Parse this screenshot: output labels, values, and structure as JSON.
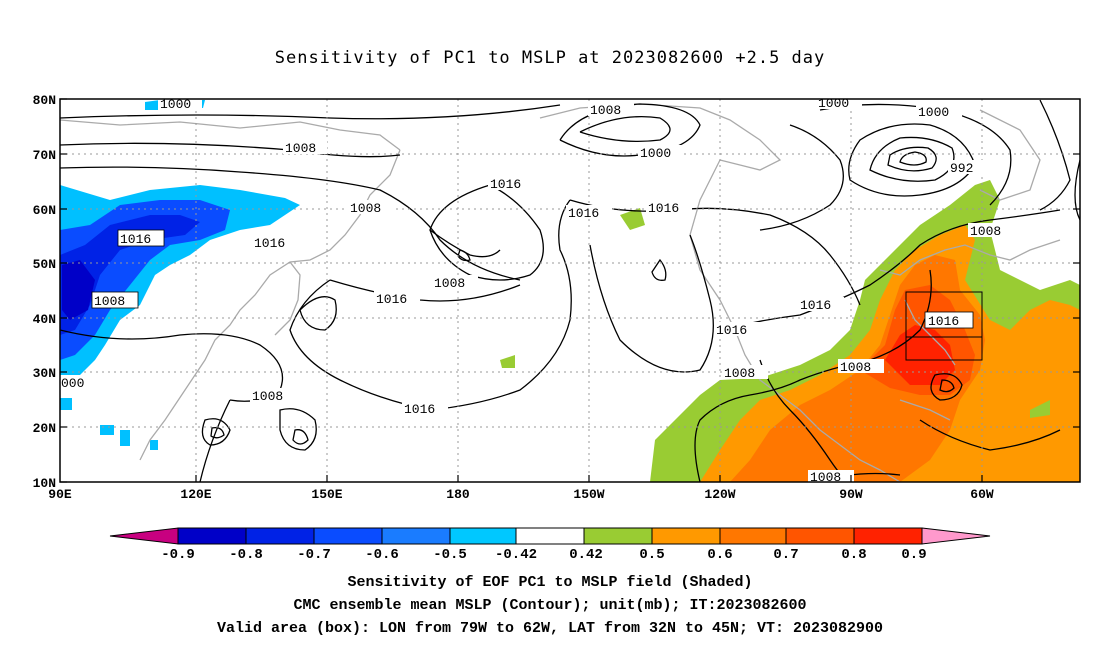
{
  "title": "Sensitivity of PC1 to MSLP at 2023082600 +2.5 day",
  "map": {
    "lat_labels": [
      "80N",
      "70N",
      "60N",
      "50N",
      "40N",
      "30N",
      "20N",
      "10N"
    ],
    "lon_labels": [
      "90E",
      "120E",
      "150E",
      "180",
      "150W",
      "120W",
      "90W",
      "60W"
    ],
    "valid_box": {
      "lon_w": "79W",
      "lon_e": "62W",
      "lat_s": "32N",
      "lat_n": "45N"
    },
    "contour_labels": [
      "1000",
      "1008",
      "1008",
      "1016",
      "1008",
      "1000",
      "1016",
      "1016",
      "1016",
      "1008",
      "1016",
      "1008",
      "1000",
      "1008",
      "1016",
      "1016",
      "1016",
      "1008",
      "1016",
      "1000",
      "992",
      "1008",
      "1016",
      "1016",
      "1008",
      "1008",
      "1008",
      "000"
    ],
    "colors": {
      "neg_strong": "#0000c8",
      "neg_mid": "#0a4cff",
      "neg_light": "#00c0ff",
      "pos_light": "#99cc33",
      "pos_mid": "#ff9900",
      "pos_strong": "#ff6600",
      "pos_max": "#ff2200",
      "land": "#aaaaaa"
    }
  },
  "colorbar": {
    "labels": [
      "-0.9",
      "-0.8",
      "-0.7",
      "-0.6",
      "-0.5",
      "-0.42",
      "0.42",
      "0.5",
      "0.6",
      "0.7",
      "0.8",
      "0.9"
    ],
    "colors": [
      "#c80080",
      "#0000c8",
      "#0022e6",
      "#0a4cff",
      "#1a7cff",
      "#1aa8ff",
      "#00c8ff",
      "#ffffff",
      "#99cc33",
      "#ff9900",
      "#ff7700",
      "#ff5500",
      "#ff2200",
      "#ff99cc"
    ]
  },
  "captions": [
    "Sensitivity of EOF PC1 to MSLP field (Shaded)",
    "CMC ensemble mean MSLP (Contour); unit(mb); IT:2023082600",
    "Valid area (box): LON from 79W to 62W, LAT from 32N to 45N; VT: 2023082900"
  ]
}
